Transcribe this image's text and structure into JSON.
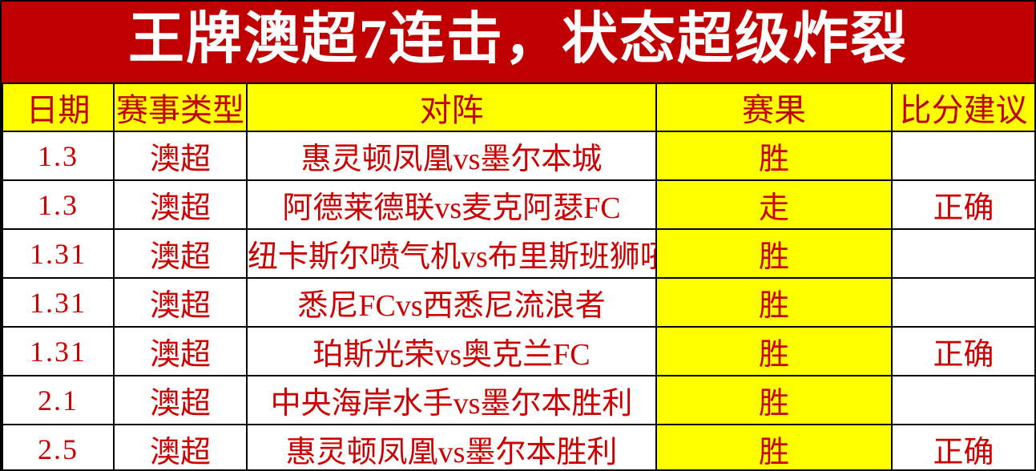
{
  "title": "王牌澳超7连击，状态超级炸裂",
  "colors": {
    "banner_red": "#c00000",
    "header_yellow": "#ffff00",
    "header_text_red": "#c00000",
    "body_text_red": "#cc0000",
    "border_black": "#000000",
    "cell_white": "#ffffff"
  },
  "table": {
    "headers": [
      "日期",
      "赛事类型",
      "对阵",
      "赛果",
      "比分建议"
    ],
    "rows": [
      {
        "date": "1.3",
        "type": "澳超",
        "match": "惠灵顿凤凰vs墨尔本城",
        "result": "胜",
        "suggestion": ""
      },
      {
        "date": "1.3",
        "type": "澳超",
        "match": "阿德莱德联vs麦克阿瑟FC",
        "result": "走",
        "suggestion": "正确"
      },
      {
        "date": "1.31",
        "type": "澳超",
        "match": "纽卡斯尔喷气机vs布里斯班狮吼",
        "result": "胜",
        "suggestion": ""
      },
      {
        "date": "1.31",
        "type": "澳超",
        "match": "悉尼FCvs西悉尼流浪者",
        "result": "胜",
        "suggestion": ""
      },
      {
        "date": "1.31",
        "type": "澳超",
        "match": "珀斯光荣vs奥克兰FC",
        "result": "胜",
        "suggestion": "正确"
      },
      {
        "date": "2.1",
        "type": "澳超",
        "match": "中央海岸水手vs墨尔本胜利",
        "result": "胜",
        "suggestion": ""
      },
      {
        "date": "2.5",
        "type": "澳超",
        "match": "惠灵顿凤凰vs墨尔本胜利",
        "result": "胜",
        "suggestion": "正确"
      }
    ]
  }
}
